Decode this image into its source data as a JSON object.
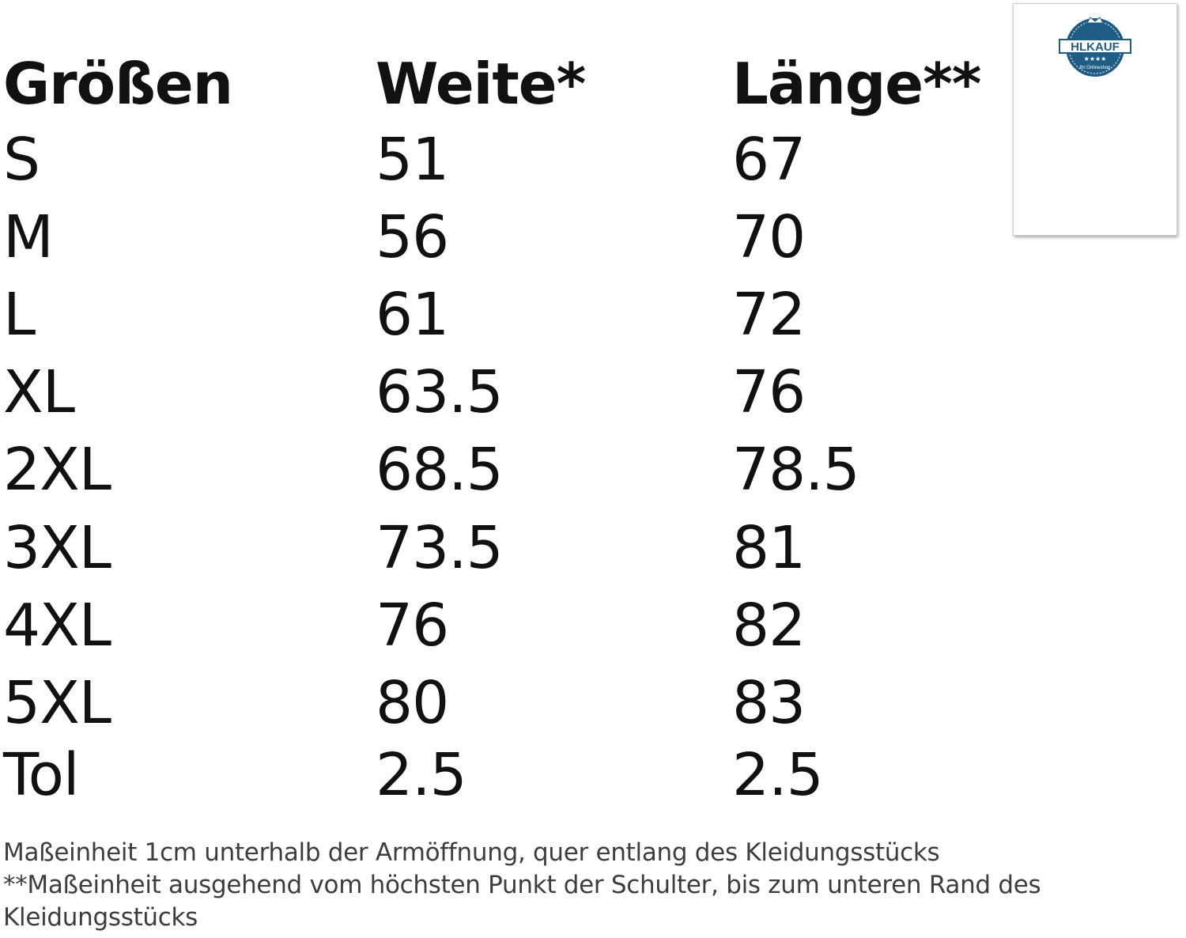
{
  "table": {
    "headers": [
      "Größen",
      "Weite*",
      "Länge**"
    ],
    "rows": [
      [
        "S",
        "51",
        "67"
      ],
      [
        "M",
        "56",
        "70"
      ],
      [
        "L",
        "61",
        "72"
      ],
      [
        "XL",
        "63.5",
        "76"
      ],
      [
        "2XL",
        "68.5",
        "78.5"
      ],
      [
        "3XL",
        "73.5",
        "81"
      ],
      [
        "4XL",
        "76",
        "82"
      ],
      [
        "5XL",
        "80",
        "83"
      ],
      [
        "Tol",
        "2.5",
        "2.5"
      ]
    ]
  },
  "footnotes": [
    "Maßeinheit 1cm unterhalb der Armöffnung, quer entlang des Kleidungsstücks",
    "**Maßeinheit ausgehend vom höchsten Punkt der Schulter, bis zum unteren Rand des Kleidungsstücks"
  ],
  "logo": {
    "brand": "HLKAUF",
    "tagline": "Ihr Onlineshop",
    "color": "#1f5d85"
  }
}
